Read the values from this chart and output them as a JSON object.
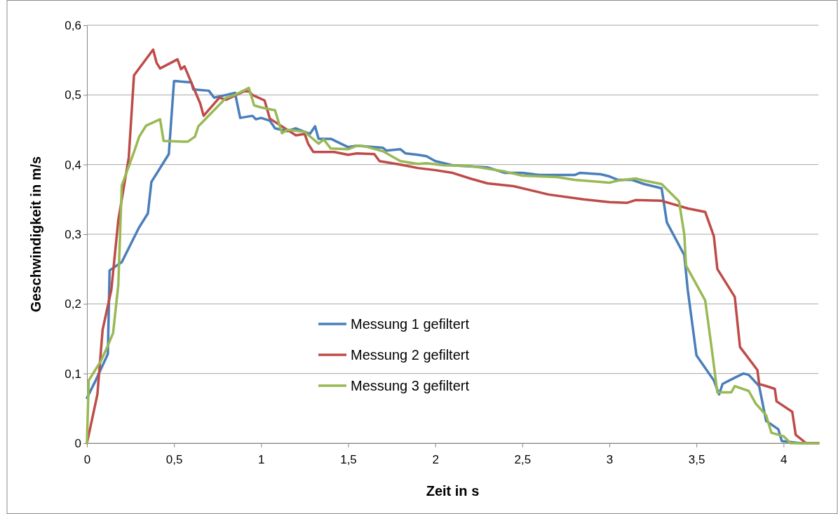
{
  "chart_data": {
    "type": "line",
    "xlabel": "Zeit in s",
    "ylabel": "Geschwindigkeit in m/s",
    "xlim": [
      0,
      4.2
    ],
    "ylim": [
      0,
      0.6
    ],
    "xticks": [
      0,
      {
        "value": 0.5,
        "label": "0,5"
      },
      1,
      {
        "value": 1.5,
        "label": "1,5"
      },
      2,
      {
        "value": 2.5,
        "label": "2,5"
      },
      3,
      {
        "value": 3.5,
        "label": "3,5"
      },
      4
    ],
    "yticks": [
      0,
      {
        "value": 0.1,
        "label": "0,1"
      },
      {
        "value": 0.2,
        "label": "0,2"
      },
      {
        "value": 0.3,
        "label": "0,3"
      },
      {
        "value": 0.4,
        "label": "0,4"
      },
      {
        "value": 0.5,
        "label": "0,5"
      },
      {
        "value": 0.6,
        "label": "0,6"
      }
    ],
    "grid": "y",
    "legend": "bottom",
    "marker": "none",
    "line_style": "solid",
    "series": [
      {
        "name": "Messung 1 gefiltert",
        "color": "#4a7ebb",
        "x": [
          0,
          0.05,
          0.12,
          0.13,
          0.2,
          0.3,
          0.35,
          0.37,
          0.47,
          0.5,
          0.6,
          0.61,
          0.7,
          0.73,
          0.8,
          0.85,
          0.88,
          0.95,
          0.97,
          1.0,
          1.05,
          1.08,
          1.15,
          1.2,
          1.28,
          1.31,
          1.33,
          1.4,
          1.5,
          1.55,
          1.7,
          1.72,
          1.8,
          1.83,
          1.9,
          1.95,
          2.0,
          2.1,
          2.3,
          2.4,
          2.5,
          2.6,
          2.8,
          2.83,
          2.95,
          3.0,
          3.05,
          3.13,
          3.2,
          3.3,
          3.33,
          3.43,
          3.45,
          3.5,
          3.6,
          3.63,
          3.65,
          3.72,
          3.77,
          3.8,
          3.86,
          3.9,
          3.97,
          3.99,
          4.1,
          4.2
        ],
        "values": [
          0.065,
          0.09,
          0.128,
          0.248,
          0.26,
          0.31,
          0.33,
          0.375,
          0.415,
          0.52,
          0.518,
          0.508,
          0.506,
          0.496,
          0.5,
          0.503,
          0.467,
          0.47,
          0.465,
          0.467,
          0.463,
          0.452,
          0.448,
          0.452,
          0.444,
          0.455,
          0.437,
          0.437,
          0.425,
          0.427,
          0.424,
          0.42,
          0.422,
          0.416,
          0.414,
          0.412,
          0.405,
          0.399,
          0.396,
          0.388,
          0.388,
          0.385,
          0.385,
          0.388,
          0.386,
          0.383,
          0.378,
          0.378,
          0.372,
          0.366,
          0.317,
          0.27,
          0.22,
          0.126,
          0.09,
          0.07,
          0.085,
          0.094,
          0.1,
          0.098,
          0.082,
          0.032,
          0.02,
          0.003,
          0,
          0
        ]
      },
      {
        "name": "Messung 2 gefiltert",
        "color": "#be4b48",
        "x": [
          0,
          0.06,
          0.09,
          0.14,
          0.18,
          0.24,
          0.27,
          0.38,
          0.4,
          0.42,
          0.52,
          0.54,
          0.56,
          0.65,
          0.67,
          0.76,
          0.8,
          0.9,
          0.93,
          0.95,
          1.02,
          1.05,
          1.2,
          1.25,
          1.27,
          1.3,
          1.42,
          1.5,
          1.55,
          1.65,
          1.68,
          1.8,
          1.9,
          2.0,
          2.1,
          2.2,
          2.3,
          2.45,
          2.55,
          2.65,
          2.85,
          3.0,
          3.1,
          3.15,
          3.3,
          3.45,
          3.55,
          3.6,
          3.62,
          3.72,
          3.75,
          3.85,
          3.86,
          3.9,
          3.95,
          3.96,
          4.05,
          4.07,
          4.13,
          4.2
        ],
        "values": [
          0,
          0.07,
          0.163,
          0.22,
          0.32,
          0.41,
          0.528,
          0.565,
          0.546,
          0.538,
          0.551,
          0.537,
          0.541,
          0.488,
          0.47,
          0.496,
          0.493,
          0.505,
          0.505,
          0.5,
          0.492,
          0.466,
          0.442,
          0.444,
          0.43,
          0.418,
          0.418,
          0.414,
          0.416,
          0.415,
          0.405,
          0.4,
          0.395,
          0.392,
          0.388,
          0.38,
          0.373,
          0.369,
          0.363,
          0.357,
          0.35,
          0.346,
          0.345,
          0.349,
          0.348,
          0.337,
          0.332,
          0.297,
          0.25,
          0.21,
          0.138,
          0.105,
          0.085,
          0.082,
          0.078,
          0.06,
          0.045,
          0.012,
          0,
          0
        ]
      },
      {
        "name": "Messung 3 gefiltert",
        "color": "#98b954",
        "x": [
          0,
          0.01,
          0.08,
          0.12,
          0.15,
          0.18,
          0.2,
          0.27,
          0.3,
          0.34,
          0.42,
          0.44,
          0.55,
          0.58,
          0.62,
          0.64,
          0.8,
          0.85,
          0.93,
          0.96,
          1.0,
          1.08,
          1.12,
          1.15,
          1.25,
          1.33,
          1.36,
          1.4,
          1.5,
          1.55,
          1.6,
          1.7,
          1.8,
          1.9,
          1.95,
          2.05,
          2.2,
          2.25,
          2.4,
          2.5,
          2.7,
          2.8,
          3.0,
          3.05,
          3.15,
          3.2,
          3.3,
          3.4,
          3.43,
          3.44,
          3.55,
          3.58,
          3.62,
          3.7,
          3.72,
          3.8,
          3.84,
          3.9,
          3.93,
          4.0,
          4.04,
          4.2
        ],
        "values": [
          0,
          0.09,
          0.118,
          0.14,
          0.158,
          0.227,
          0.37,
          0.418,
          0.44,
          0.456,
          0.465,
          0.434,
          0.433,
          0.433,
          0.44,
          0.455,
          0.496,
          0.5,
          0.51,
          0.485,
          0.482,
          0.478,
          0.445,
          0.45,
          0.447,
          0.43,
          0.436,
          0.423,
          0.422,
          0.427,
          0.426,
          0.419,
          0.405,
          0.401,
          0.402,
          0.399,
          0.398,
          0.396,
          0.39,
          0.384,
          0.382,
          0.378,
          0.374,
          0.377,
          0.38,
          0.377,
          0.372,
          0.347,
          0.3,
          0.255,
          0.205,
          0.15,
          0.073,
          0.073,
          0.082,
          0.075,
          0.057,
          0.04,
          0.015,
          0.01,
          0,
          0
        ]
      }
    ]
  }
}
